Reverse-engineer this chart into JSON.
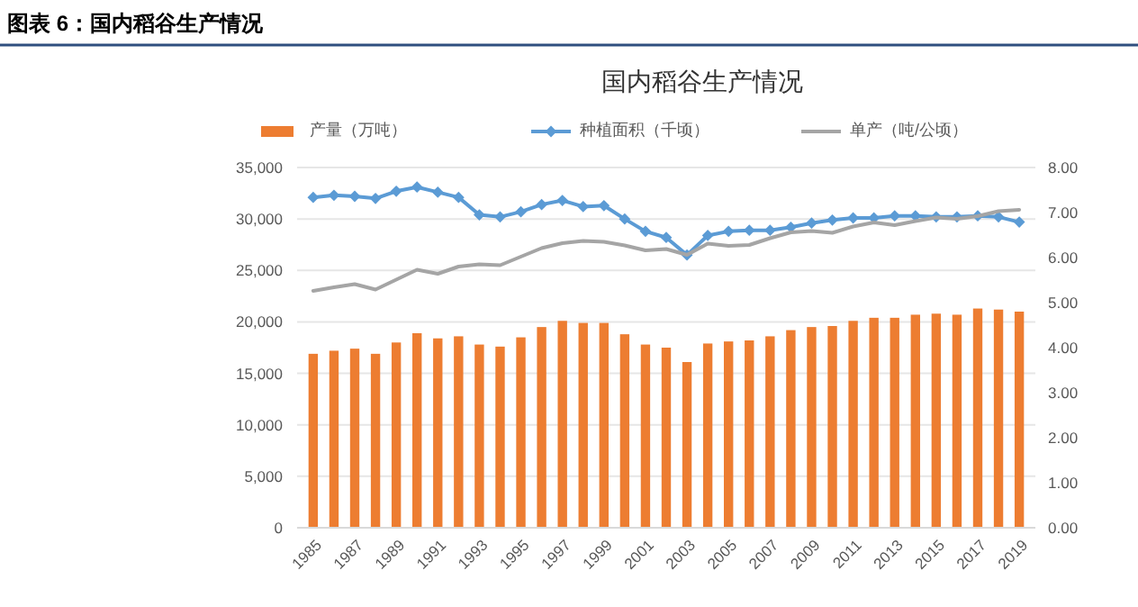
{
  "chart_data": {
    "type": "bar",
    "title": "国内稻谷生产情况",
    "annotations": [
      "图表 6：国内稻谷生产情况"
    ],
    "categories": [
      "1985",
      null,
      "1987",
      null,
      "1989",
      null,
      "1991",
      null,
      "1993",
      null,
      "1995",
      null,
      "1997",
      null,
      "1999",
      null,
      "2001",
      null,
      "2003",
      null,
      "2005",
      null,
      "2007",
      null,
      "2009",
      null,
      "2011",
      null,
      "2013",
      null,
      "2015",
      null,
      "2017",
      null,
      "2019"
    ],
    "series": [
      {
        "name": "产量（万吨）",
        "color": "#ed7d31",
        "values": [
          16900,
          17200,
          17400,
          16900,
          18000,
          18900,
          18400,
          18600,
          17800,
          17600,
          18500,
          19500,
          20100,
          19900,
          19900,
          18800,
          17800,
          17500,
          16100,
          17900,
          18100,
          18200,
          18600,
          19200,
          19500,
          19600,
          20100,
          20400,
          20400,
          20700,
          20800,
          20700,
          21300,
          21200,
          21000
        ]
      },
      {
        "name": "种植面积（千顷）",
        "type": "line",
        "color": "#5b9bd5",
        "marker": "diamond",
        "values": [
          32100,
          32300,
          32200,
          32000,
          32700,
          33100,
          32600,
          32100,
          30400,
          30200,
          30700,
          31400,
          31800,
          31200,
          31300,
          30000,
          28800,
          28200,
          26500,
          28400,
          28800,
          28900,
          28900,
          29200,
          29600,
          29900,
          30100,
          30100,
          30300,
          30300,
          30200,
          30200,
          30300,
          30200,
          29700
        ]
      },
      {
        "name": "单产（吨/公顷）",
        "type": "line",
        "axis": "y2",
        "color": "#a5a5a5",
        "values": [
          5.26,
          5.34,
          5.41,
          5.29,
          5.51,
          5.73,
          5.64,
          5.8,
          5.85,
          5.83,
          6.02,
          6.21,
          6.32,
          6.37,
          6.35,
          6.27,
          6.16,
          6.19,
          6.06,
          6.31,
          6.26,
          6.28,
          6.43,
          6.56,
          6.59,
          6.55,
          6.69,
          6.78,
          6.72,
          6.81,
          6.89,
          6.86,
          6.92,
          7.03,
          7.06
        ]
      }
    ],
    "ylim": [
      0,
      35000
    ],
    "yticks": [
      {
        "value": 0,
        "label": "0"
      },
      {
        "value": 5000,
        "label": "5,000"
      },
      {
        "value": 10000,
        "label": "10,000"
      },
      {
        "value": 15000,
        "label": "15,000"
      },
      {
        "value": 20000,
        "label": "20,000"
      },
      {
        "value": 25000,
        "label": "25,000"
      },
      {
        "value": 30000,
        "label": "30,000"
      },
      {
        "value": 35000,
        "label": "35,000"
      }
    ],
    "y2lim": [
      0,
      8
    ],
    "y2ticks": [
      {
        "value": 0,
        "label": "0.00"
      },
      {
        "value": 1,
        "label": "1.00"
      },
      {
        "value": 2,
        "label": "2.00"
      },
      {
        "value": 3,
        "label": "3.00"
      },
      {
        "value": 4,
        "label": "4.00"
      },
      {
        "value": 5,
        "label": "5.00"
      },
      {
        "value": 6,
        "label": "6.00"
      },
      {
        "value": 7,
        "label": "7.00"
      },
      {
        "value": 8,
        "label": "8.00"
      }
    ],
    "grid": "y",
    "legend": "top"
  }
}
